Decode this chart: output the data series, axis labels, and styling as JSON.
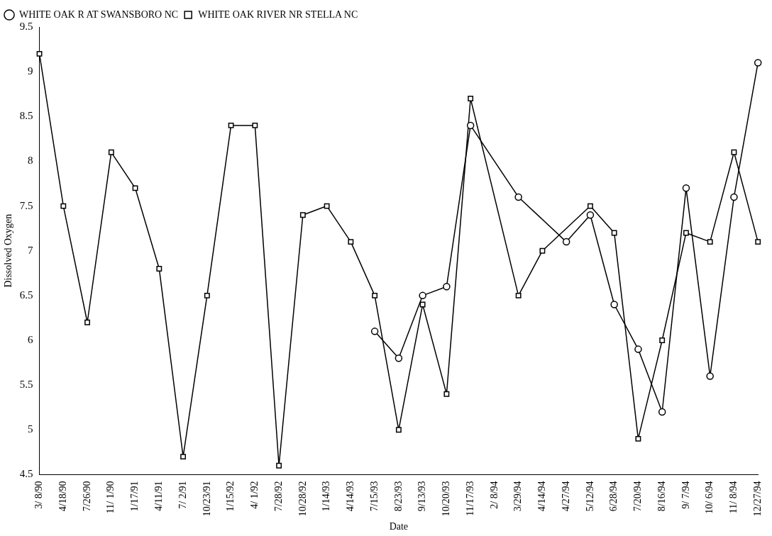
{
  "chart_data": {
    "type": "line",
    "xlabel": "Date",
    "ylabel": "Dissolved Oxygen",
    "categories": [
      "3/ 8/90",
      "4/18/90",
      "7/26/90",
      "11/ 1/90",
      "1/17/91",
      "4/11/91",
      "7/ 2/91",
      "10/23/91",
      "1/15/92",
      "4/ 1/92",
      "7/28/92",
      "10/28/92",
      "1/14/93",
      "4/14/93",
      "7/15/93",
      "8/23/93",
      "9/13/93",
      "10/20/93",
      "11/17/93",
      "2/ 8/94",
      "3/29/94",
      "4/14/94",
      "4/27/94",
      "5/12/94",
      "6/28/94",
      "7/20/94",
      "8/16/94",
      "9/ 7/94",
      "10/ 6/94",
      "11/ 8/94",
      "12/27/94"
    ],
    "series": [
      {
        "name": "WHITE OAK R AT SWANSBORO NC",
        "color": "#000000",
        "marker": "circle",
        "values": [
          null,
          null,
          null,
          null,
          null,
          null,
          null,
          null,
          null,
          null,
          null,
          null,
          null,
          null,
          6.1,
          5.8,
          6.5,
          6.6,
          8.4,
          null,
          7.6,
          null,
          7.1,
          7.4,
          6.4,
          5.9,
          5.2,
          7.7,
          5.6,
          7.6,
          9.1
        ]
      },
      {
        "name": "WHITE OAK RIVER NR STELLA NC",
        "color": "#000000",
        "marker": "square",
        "values": [
          9.2,
          7.5,
          6.2,
          8.1,
          7.7,
          6.8,
          4.7,
          6.5,
          8.4,
          8.4,
          4.6,
          7.4,
          7.5,
          7.1,
          6.5,
          5.0,
          6.4,
          5.4,
          8.7,
          null,
          6.5,
          7.0,
          null,
          7.5,
          7.2,
          4.9,
          6.0,
          7.2,
          7.1,
          8.1,
          7.1
        ]
      }
    ],
    "ylim": [
      4.5,
      9.5
    ],
    "yticks": [
      4.5,
      5,
      5.5,
      6,
      6.5,
      7,
      7.5,
      8,
      8.5,
      9,
      9.5
    ],
    "grid": false,
    "legend": "top left",
    "line_style": "solid"
  }
}
